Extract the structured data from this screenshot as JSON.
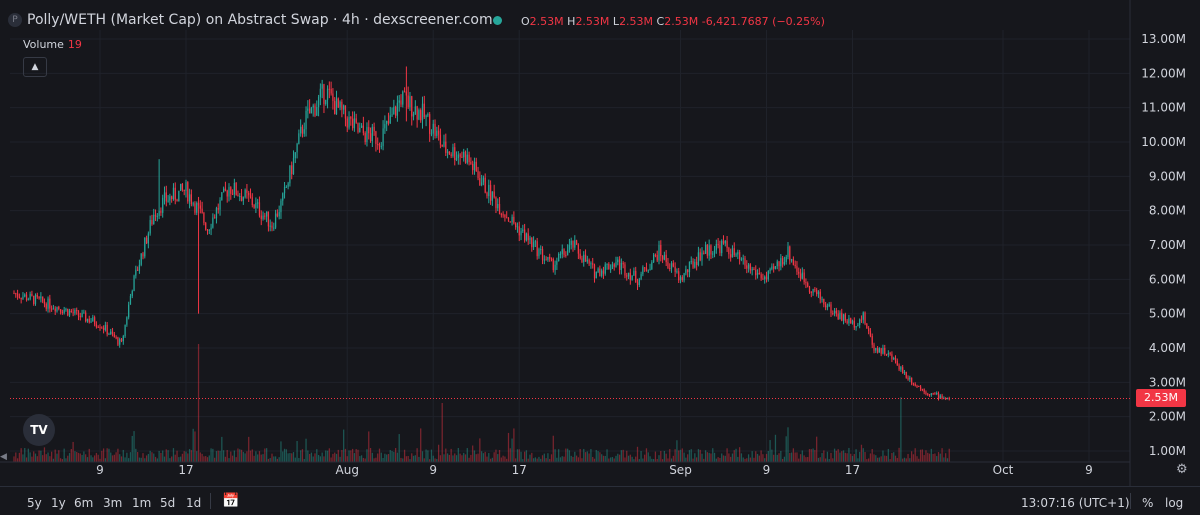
{
  "header": {
    "symbol_icon_letter": "P",
    "title": "Polly/WETH (Market Cap) on Abstract Swap · 4h · dexscreener.com",
    "ohlc": {
      "o_key": "O",
      "o_val": "2.53M",
      "h_key": "H",
      "h_val": "2.53M",
      "l_key": "L",
      "l_val": "2.53M",
      "c_key": "C",
      "c_val": "2.53M",
      "change": "-6,421.7687 (−0.25%)"
    }
  },
  "volume": {
    "label": "Volume",
    "value": "19"
  },
  "logo_text": "TV",
  "bottom_bar": {
    "timeframes": [
      "5y",
      "1y",
      "6m",
      "3m",
      "1m",
      "5d",
      "1d"
    ],
    "clock": "13:07:16 (UTC+1)",
    "percent_label": "%",
    "log_label": "log"
  },
  "colors": {
    "up": "#26a69a",
    "down": "#f23645",
    "background": "#16171c",
    "grid": "#1f222a",
    "text": "#d1d4dc"
  },
  "icons": [
    "symbol-icon",
    "status-dot-icon",
    "collapse-icon",
    "tradingview-logo-icon",
    "calendar-range-icon",
    "settings-gear-icon"
  ],
  "chart_data": {
    "type": "candlestick",
    "y_axis": {
      "scale": "linear",
      "ylim": [
        0.75,
        13.25
      ],
      "unit": "M",
      "tick_labels": [
        "13.00M",
        "12.00M",
        "11.00M",
        "10.00M",
        "9.00M",
        "8.00M",
        "7.00M",
        "6.00M",
        "5.00M",
        "4.00M",
        "3.00M",
        "2.00M",
        "1.00M"
      ],
      "tick_values": [
        13,
        12,
        11,
        10,
        9,
        8,
        7,
        6,
        5,
        4,
        3,
        2,
        1
      ]
    },
    "x_axis": {
      "tick_labels": [
        "9",
        "17",
        "Aug",
        "9",
        "17",
        "Sep",
        "9",
        "17",
        "Oct",
        "9"
      ],
      "tick_day_index": [
        8,
        16,
        31,
        39,
        47,
        62,
        70,
        78,
        92,
        100
      ]
    },
    "last_price": {
      "label": "2.53M",
      "value": 2.53
    },
    "grid": true,
    "path_keypoints": {
      "day_index": [
        0,
        4,
        8,
        10,
        11,
        13,
        14,
        16,
        17,
        18,
        20,
        22,
        24,
        25,
        27,
        29,
        30,
        32,
        34,
        35,
        36,
        38,
        39,
        40,
        42,
        43,
        44,
        46,
        48,
        50,
        52,
        54,
        56,
        58,
        60,
        62,
        64,
        66,
        68,
        70,
        72,
        73,
        74,
        76,
        78,
        79,
        80,
        81,
        82,
        83,
        84,
        85,
        86,
        87
      ],
      "close_millions": [
        5.6,
        5.2,
        4.7,
        4.1,
        5.8,
        7.9,
        8.3,
        8.6,
        8.1,
        7.5,
        8.7,
        8.3,
        7.6,
        8.3,
        10.6,
        11.5,
        11.0,
        10.3,
        10.1,
        10.6,
        11.3,
        10.8,
        10.4,
        9.8,
        9.6,
        9.1,
        8.6,
        7.8,
        7.1,
        6.4,
        7.0,
        6.2,
        6.5,
        6.0,
        6.8,
        6.0,
        6.8,
        7.0,
        6.4,
        6.0,
        6.8,
        6.2,
        5.8,
        5.1,
        4.7,
        4.9,
        4.0,
        3.9,
        3.6,
        3.2,
        2.9,
        2.7,
        2.6,
        2.53
      ]
    },
    "spikes": [
      {
        "day_index": 17.2,
        "high_millions": 8.4,
        "low_millions": 5.0
      },
      {
        "day_index": 36.5,
        "high_millions": 12.2,
        "low_millions": 10.6
      },
      {
        "day_index": 13.5,
        "high_millions": 9.5,
        "low_millions": 7.8
      }
    ],
    "candles_per_day": 6,
    "volume_bars": {
      "typical_relative_height": 0.12,
      "spike_day_index": [
        17.2,
        39.8,
        82.5
      ],
      "spike_relative_height": [
        1.0,
        0.5,
        0.55
      ]
    }
  }
}
